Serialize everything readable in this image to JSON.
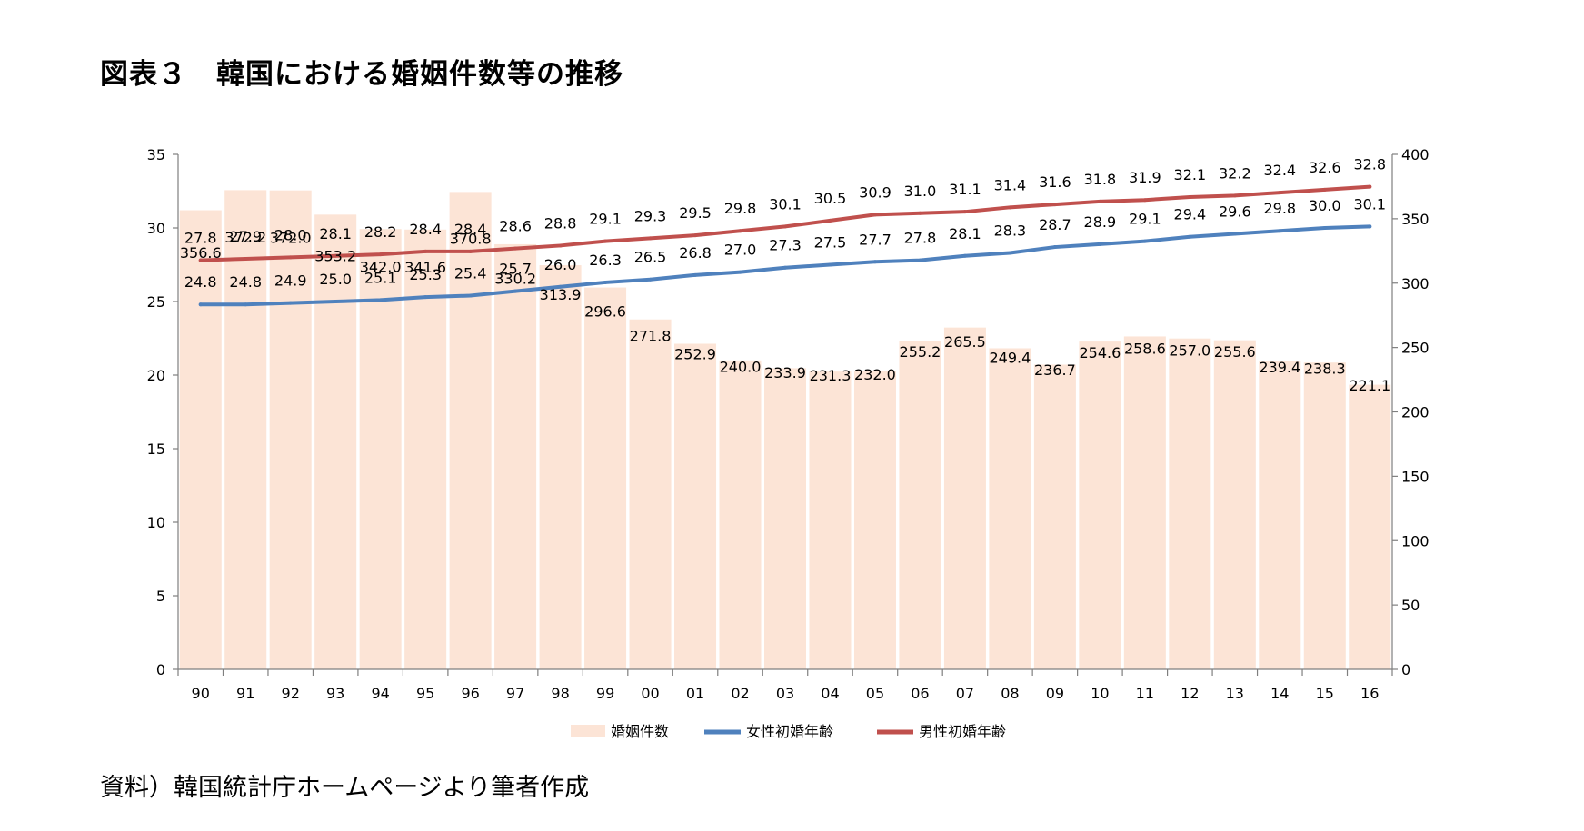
{
  "title": "図表３　韓国における婚姻件数等の推移",
  "source": "資料）韓国統計庁ホームページより筆者作成",
  "colors": {
    "bar": "#fce4d6",
    "female_line": "#4f81bd",
    "male_line": "#c0504d",
    "axis": "#7f7f7f"
  },
  "chart_data": {
    "type": "bar",
    "categories": [
      "90",
      "91",
      "92",
      "93",
      "94",
      "95",
      "96",
      "97",
      "98",
      "99",
      "00",
      "01",
      "02",
      "03",
      "04",
      "05",
      "06",
      "07",
      "08",
      "09",
      "10",
      "11",
      "12",
      "13",
      "14",
      "15",
      "16"
    ],
    "series": [
      {
        "name": "婚姻件数",
        "type": "bar",
        "axis": "right",
        "labels": [
          "356.6",
          "372.2",
          "372.0",
          "353.2",
          "342.0",
          "341.6",
          "370.8",
          "330.2",
          "313.9",
          "296.6",
          "271.8",
          "252.9",
          "240.0",
          "233.9",
          "231.3",
          "232.0",
          "255.2",
          "265.5",
          "249.4",
          "236.7",
          "254.6",
          "258.6",
          "257.0",
          "255.6",
          "239.4",
          "238.3",
          "221.1"
        ],
        "values": [
          356.6,
          372.2,
          372.0,
          353.2,
          342.0,
          341.6,
          370.8,
          330.2,
          313.9,
          296.6,
          271.8,
          252.9,
          240.0,
          233.9,
          231.3,
          232.0,
          255.2,
          265.5,
          249.4,
          236.7,
          254.6,
          258.6,
          257.0,
          255.6,
          239.4,
          238.3,
          221.1
        ]
      },
      {
        "name": "女性初婚年齢",
        "type": "line",
        "axis": "left",
        "labels": [
          "24.8",
          "24.8",
          "24.9",
          "25.0",
          "25.1",
          "25.3",
          "25.4",
          "25.7",
          "26.0",
          "26.3",
          "26.5",
          "26.8",
          "27.0",
          "27.3",
          "27.5",
          "27.7",
          "27.8",
          "28.1",
          "28.3",
          "28.7",
          "28.9",
          "29.1",
          "29.4",
          "29.6",
          "29.8",
          "30.0",
          "30.1"
        ],
        "values": [
          24.8,
          24.8,
          24.9,
          25.0,
          25.1,
          25.3,
          25.4,
          25.7,
          26.0,
          26.3,
          26.5,
          26.8,
          27.0,
          27.3,
          27.5,
          27.7,
          27.8,
          28.1,
          28.3,
          28.7,
          28.9,
          29.1,
          29.4,
          29.6,
          29.8,
          30.0,
          30.1
        ]
      },
      {
        "name": "男性初婚年齢",
        "type": "line",
        "axis": "left",
        "labels": [
          "27.8",
          "27.9",
          "28.0",
          "28.1",
          "28.2",
          "28.4",
          "28.4",
          "28.6",
          "28.8",
          "29.1",
          "29.3",
          "29.5",
          "29.8",
          "30.1",
          "30.5",
          "30.9",
          "31.0",
          "31.1",
          "31.4",
          "31.6",
          "31.8",
          "31.9",
          "32.1",
          "32.2",
          "32.4",
          "32.6",
          "32.8"
        ],
        "values": [
          27.8,
          27.9,
          28.0,
          28.1,
          28.2,
          28.4,
          28.4,
          28.6,
          28.8,
          29.1,
          29.3,
          29.5,
          29.8,
          30.1,
          30.5,
          30.9,
          31.0,
          31.1,
          31.4,
          31.6,
          31.8,
          31.9,
          32.1,
          32.2,
          32.4,
          32.6,
          32.8
        ]
      }
    ],
    "ylim_left": [
      0,
      35
    ],
    "yticks_left": [
      "0",
      "5",
      "10",
      "15",
      "20",
      "25",
      "30",
      "35"
    ],
    "ylim_right": [
      0,
      400
    ],
    "yticks_right": [
      "0",
      "50",
      "100",
      "150",
      "200",
      "250",
      "300",
      "350",
      "400"
    ],
    "grid": false,
    "legend": "bottom-center"
  }
}
